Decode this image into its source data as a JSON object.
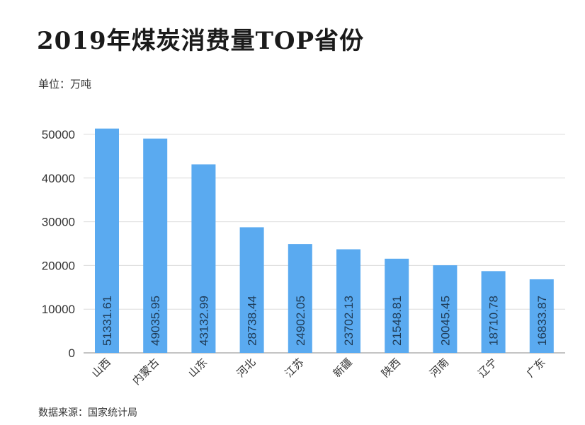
{
  "title": "2019年煤炭消费量TOP省份",
  "unit": "单位：万吨",
  "source": "数据来源：国家统计局",
  "colors": {
    "bar": "#5aaaf0",
    "grid": "#dcdcdc",
    "axis": "#888888"
  },
  "chart_data": {
    "type": "bar",
    "title": "2019年煤炭消费量TOP省份",
    "xlabel": "",
    "ylabel": "",
    "categories": [
      "山西",
      "内蒙古",
      "山东",
      "河北",
      "江苏",
      "新疆",
      "陕西",
      "河南",
      "辽宁",
      "广东"
    ],
    "values": [
      51331.61,
      49035.95,
      43132.99,
      28738.44,
      24902.05,
      23702.13,
      21548.81,
      20045.45,
      18710.78,
      16833.87
    ],
    "data_labels": [
      "51331.61",
      "49035.95",
      "43132.99",
      "28738.44",
      "24902.05",
      "23702.13",
      "21548.81",
      "20045.45",
      "18710.78",
      "16833.87"
    ],
    "yticks": [
      0,
      10000,
      20000,
      30000,
      40000,
      50000
    ],
    "ylim": [
      0,
      50000
    ],
    "grid": true,
    "legend": "none"
  }
}
